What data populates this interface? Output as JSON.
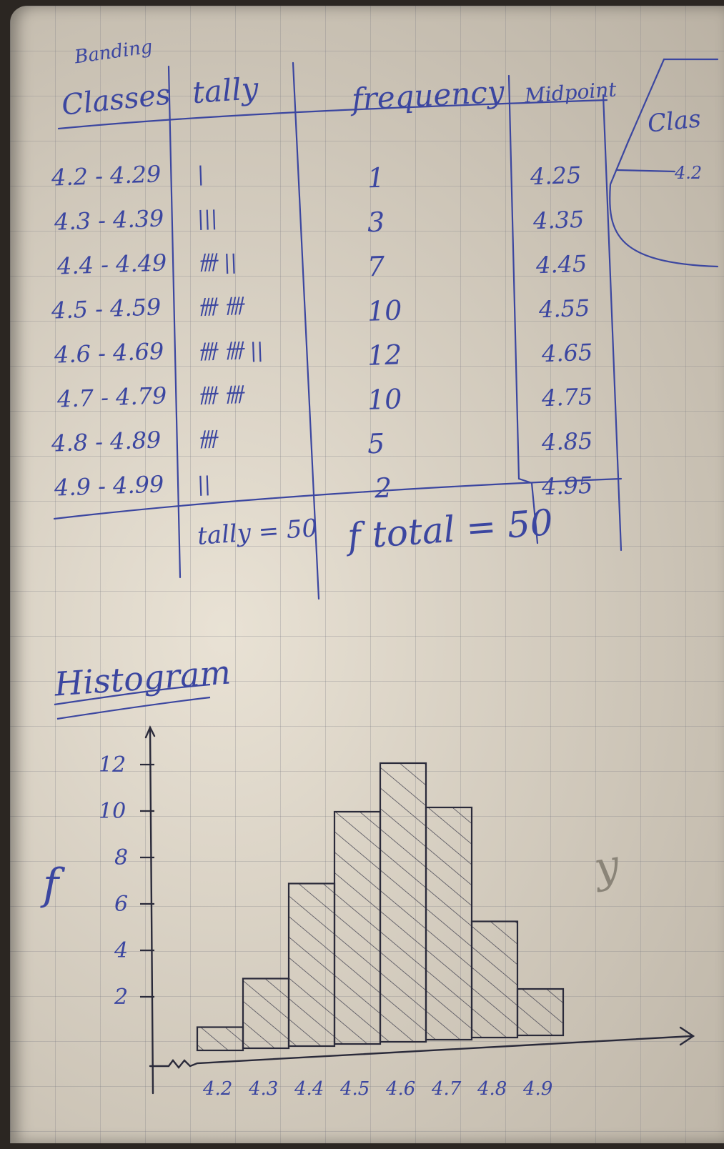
{
  "table": {
    "headers": {
      "classes_prefix": "Banding",
      "classes": "Classes",
      "tally": "tally",
      "frequency": "frequency",
      "midpoint": "Midpoint"
    },
    "rows": [
      {
        "class": "4.2 - 4.29",
        "tally": "|",
        "frequency": "1",
        "midpoint": "4.25"
      },
      {
        "class": "4.3 - 4.39",
        "tally": "|||",
        "frequency": "3",
        "midpoint": "4.35"
      },
      {
        "class": "4.4 - 4.49",
        "tally": "卌 ||",
        "frequency": "7",
        "midpoint": "4.45"
      },
      {
        "class": "4.5 - 4.59",
        "tally": "卌 卌",
        "frequency": "10",
        "midpoint": "4.55"
      },
      {
        "class": "4.6 - 4.69",
        "tally": "卌 卌 ||",
        "frequency": "12",
        "midpoint": "4.65"
      },
      {
        "class": "4.7 - 4.79",
        "tally": "卌 卌",
        "frequency": "10",
        "midpoint": "4.75"
      },
      {
        "class": "4.8 - 4.89",
        "tally": "卌",
        "frequency": "5",
        "midpoint": "4.85"
      },
      {
        "class": "4.9 - 4.99",
        "tally": "||",
        "frequency": "2",
        "midpoint": "4.95"
      }
    ],
    "tally_total": "tally = 50",
    "frequency_total": "f total = 50",
    "side_note_top": "Clas",
    "side_note_struck": "4.2"
  },
  "histogram_heading": "Histogram",
  "margin_scribble": "y",
  "chart_data": {
    "type": "bar",
    "title": "Histogram",
    "ylabel": "f",
    "xlabel": "",
    "categories": [
      "4.2",
      "4.3",
      "4.4",
      "4.5",
      "4.6",
      "4.7",
      "4.8",
      "4.9"
    ],
    "values": [
      1,
      3,
      7,
      10,
      12,
      10,
      5,
      2
    ],
    "yticks": [
      "2",
      "4",
      "6",
      "8",
      "10",
      "12"
    ],
    "ylim": [
      0,
      13
    ],
    "bar_fill": "hatched",
    "grid": false,
    "ink_color": "#2a2a3a"
  }
}
